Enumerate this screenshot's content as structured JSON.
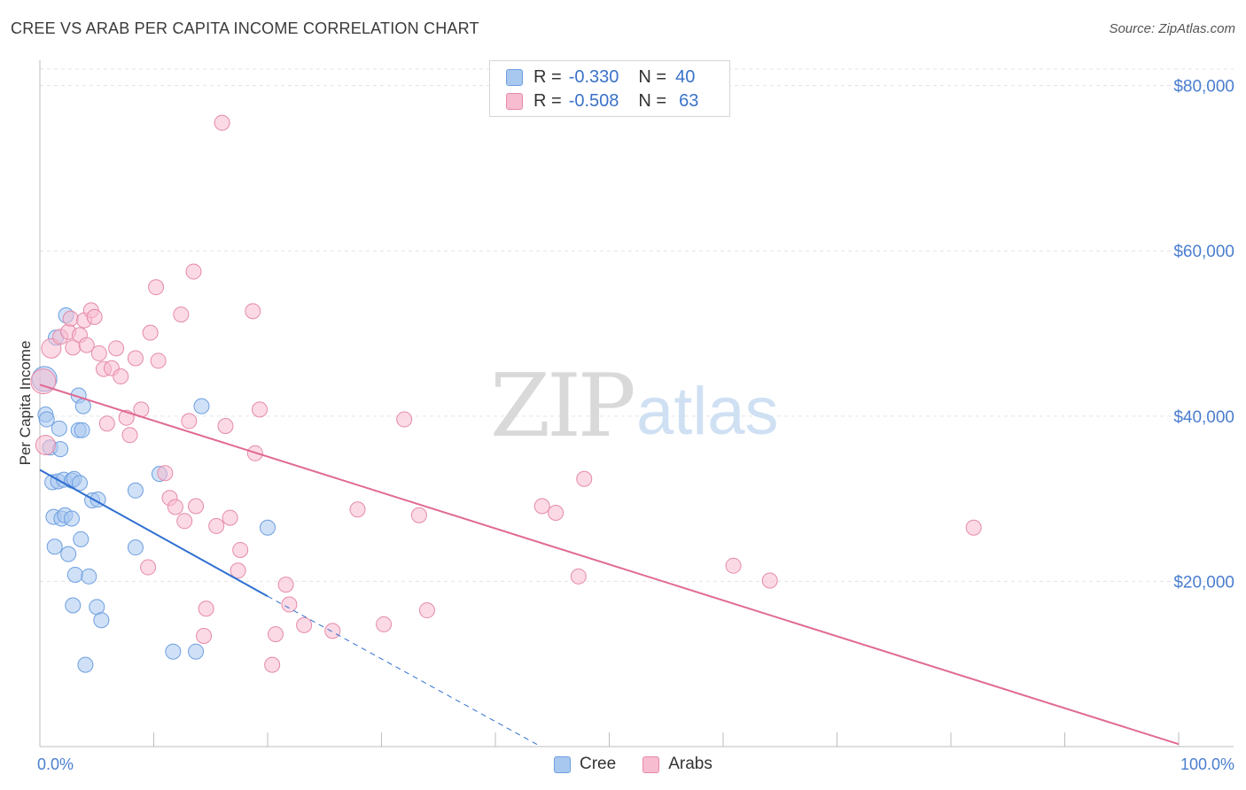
{
  "title": "CREE VS ARAB PER CAPITA INCOME CORRELATION CHART",
  "source": "Source: ZipAtlas.com",
  "watermark": {
    "zip": "ZIP",
    "atlas": "atlas"
  },
  "legend": {
    "rows": [
      {
        "r_label": "R =",
        "r_value": "-0.330",
        "n_label": "N =",
        "n_value": "40",
        "color": "#a9c8f0",
        "border": "#6d9fe0"
      },
      {
        "r_label": "R =",
        "r_value": "-0.508",
        "n_label": "N =",
        "n_value": "63",
        "color": "#f7bcd0",
        "border": "#e58aa9"
      }
    ]
  },
  "bottom_legend": [
    {
      "label": "Cree",
      "color": "#a9c8f0",
      "border": "#6d9fe0"
    },
    {
      "label": "Arabs",
      "color": "#f7bcd0",
      "border": "#e58aa9"
    }
  ],
  "chart_data": {
    "type": "scatter",
    "xlabel": "",
    "ylabel": "Per Capita Income",
    "xlim": [
      0,
      100
    ],
    "ylim": [
      0,
      82000
    ],
    "x_tick_labels": [
      "0.0%",
      "100.0%"
    ],
    "y_ticks": [
      20000,
      40000,
      60000,
      80000
    ],
    "y_tick_labels": [
      "$20,000",
      "$40,000",
      "$60,000",
      "$80,000"
    ],
    "grid": true,
    "series": [
      {
        "name": "Cree",
        "color": "#6d9fe0",
        "fill": "#a9c8f0",
        "trend": {
          "x": [
            0,
            20
          ],
          "y": [
            33500,
            18200
          ],
          "dashed_extension_to": [
            44,
            0
          ]
        },
        "points": [
          [
            0.4,
            44500
          ],
          [
            0.5,
            40200
          ],
          [
            0.6,
            39600
          ],
          [
            0.9,
            36200
          ],
          [
            1.1,
            32000
          ],
          [
            1.2,
            27800
          ],
          [
            1.3,
            24200
          ],
          [
            1.4,
            49500
          ],
          [
            1.6,
            32100
          ],
          [
            1.8,
            36000
          ],
          [
            1.7,
            38500
          ],
          [
            1.9,
            27600
          ],
          [
            2.1,
            32300
          ],
          [
            2.2,
            28000
          ],
          [
            2.3,
            52200
          ],
          [
            2.5,
            23300
          ],
          [
            2.8,
            32200
          ],
          [
            2.8,
            27600
          ],
          [
            2.9,
            17100
          ],
          [
            3.0,
            32400
          ],
          [
            3.1,
            20800
          ],
          [
            3.4,
            38300
          ],
          [
            3.4,
            42500
          ],
          [
            3.5,
            31900
          ],
          [
            3.6,
            25100
          ],
          [
            3.7,
            38300
          ],
          [
            3.8,
            41200
          ],
          [
            4.0,
            9900
          ],
          [
            4.3,
            20600
          ],
          [
            4.6,
            29800
          ],
          [
            5.0,
            16900
          ],
          [
            5.1,
            29900
          ],
          [
            5.4,
            15300
          ],
          [
            8.4,
            24100
          ],
          [
            8.4,
            31000
          ],
          [
            10.5,
            33000
          ],
          [
            11.7,
            11500
          ],
          [
            13.7,
            11500
          ],
          [
            14.2,
            41200
          ],
          [
            20.0,
            26500
          ]
        ]
      },
      {
        "name": "Arabs",
        "color": "#e58aa9",
        "fill": "#f7bcd0",
        "trend": {
          "x": [
            0,
            100
          ],
          "y": [
            43800,
            300
          ]
        },
        "points": [
          [
            0.3,
            44200
          ],
          [
            0.5,
            36500
          ],
          [
            1.0,
            48200
          ],
          [
            1.8,
            49600
          ],
          [
            2.5,
            50200
          ],
          [
            2.7,
            51800
          ],
          [
            2.9,
            48300
          ],
          [
            3.5,
            49800
          ],
          [
            3.9,
            51600
          ],
          [
            4.1,
            48600
          ],
          [
            4.5,
            52800
          ],
          [
            4.8,
            52000
          ],
          [
            5.2,
            47600
          ],
          [
            5.6,
            45700
          ],
          [
            5.9,
            39100
          ],
          [
            6.3,
            45800
          ],
          [
            6.7,
            48200
          ],
          [
            7.1,
            44800
          ],
          [
            7.6,
            39800
          ],
          [
            7.9,
            37700
          ],
          [
            8.4,
            47000
          ],
          [
            8.9,
            40800
          ],
          [
            9.5,
            21700
          ],
          [
            9.7,
            50100
          ],
          [
            10.2,
            55600
          ],
          [
            10.4,
            46700
          ],
          [
            11.0,
            33100
          ],
          [
            11.4,
            30100
          ],
          [
            11.9,
            29000
          ],
          [
            12.4,
            52300
          ],
          [
            12.7,
            27300
          ],
          [
            13.1,
            39400
          ],
          [
            13.5,
            57500
          ],
          [
            13.7,
            29100
          ],
          [
            14.4,
            13400
          ],
          [
            14.6,
            16700
          ],
          [
            15.5,
            26700
          ],
          [
            16.0,
            75500
          ],
          [
            16.3,
            38800
          ],
          [
            16.7,
            27700
          ],
          [
            17.4,
            21300
          ],
          [
            17.6,
            23800
          ],
          [
            18.7,
            52700
          ],
          [
            18.9,
            35500
          ],
          [
            19.3,
            40800
          ],
          [
            20.4,
            9900
          ],
          [
            20.7,
            13600
          ],
          [
            21.6,
            19600
          ],
          [
            21.9,
            17200
          ],
          [
            23.2,
            14700
          ],
          [
            25.7,
            14000
          ],
          [
            27.9,
            28700
          ],
          [
            30.2,
            14800
          ],
          [
            32.0,
            39600
          ],
          [
            33.3,
            28000
          ],
          [
            34.0,
            16500
          ],
          [
            44.1,
            29100
          ],
          [
            45.3,
            28300
          ],
          [
            47.3,
            20600
          ],
          [
            47.8,
            32400
          ],
          [
            60.9,
            21900
          ],
          [
            64.1,
            20100
          ],
          [
            82.0,
            26500
          ]
        ]
      }
    ]
  }
}
